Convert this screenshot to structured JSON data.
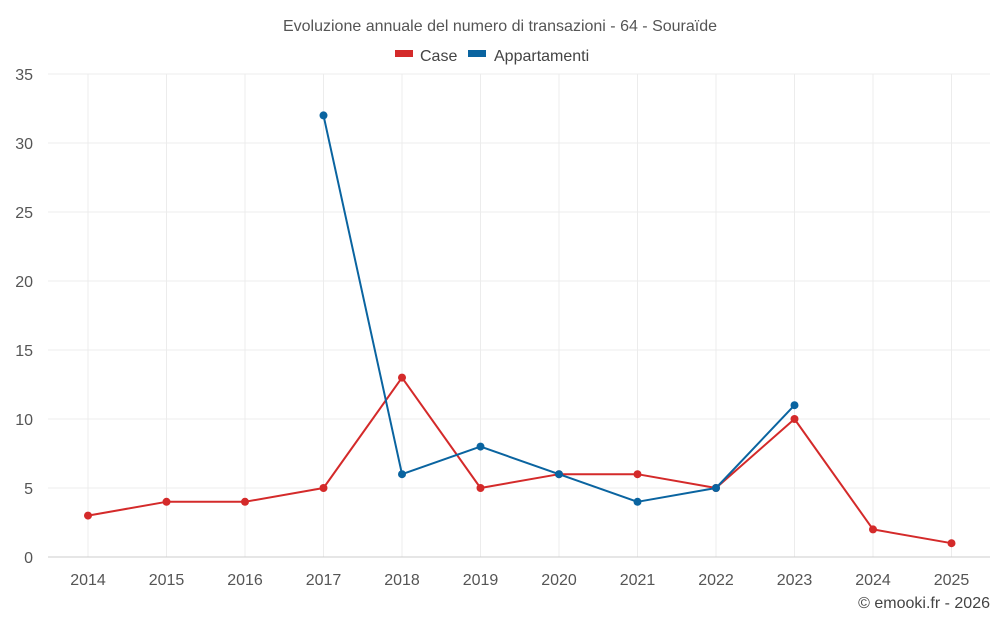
{
  "chart_data": {
    "type": "line",
    "title": "Evoluzione annuale del numero di transazioni - 64 - Souraïde",
    "categories": [
      "2014",
      "2015",
      "2016",
      "2017",
      "2018",
      "2019",
      "2020",
      "2021",
      "2022",
      "2023",
      "2024",
      "2025"
    ],
    "ylim": [
      0,
      35
    ],
    "yticks": [
      0,
      5,
      10,
      15,
      20,
      25,
      30,
      35
    ],
    "grid": true,
    "legend_position": "top-center",
    "series": [
      {
        "name": "Case",
        "color": "#d42a2a",
        "values": [
          3,
          4,
          4,
          5,
          13,
          5,
          6,
          6,
          5,
          10,
          2,
          1
        ]
      },
      {
        "name": "Appartamenti",
        "color": "#0a64a0",
        "values": [
          null,
          null,
          null,
          32,
          6,
          8,
          6,
          4,
          5,
          11,
          null,
          null
        ]
      }
    ]
  },
  "credit": "© emooki.fr - 2026"
}
